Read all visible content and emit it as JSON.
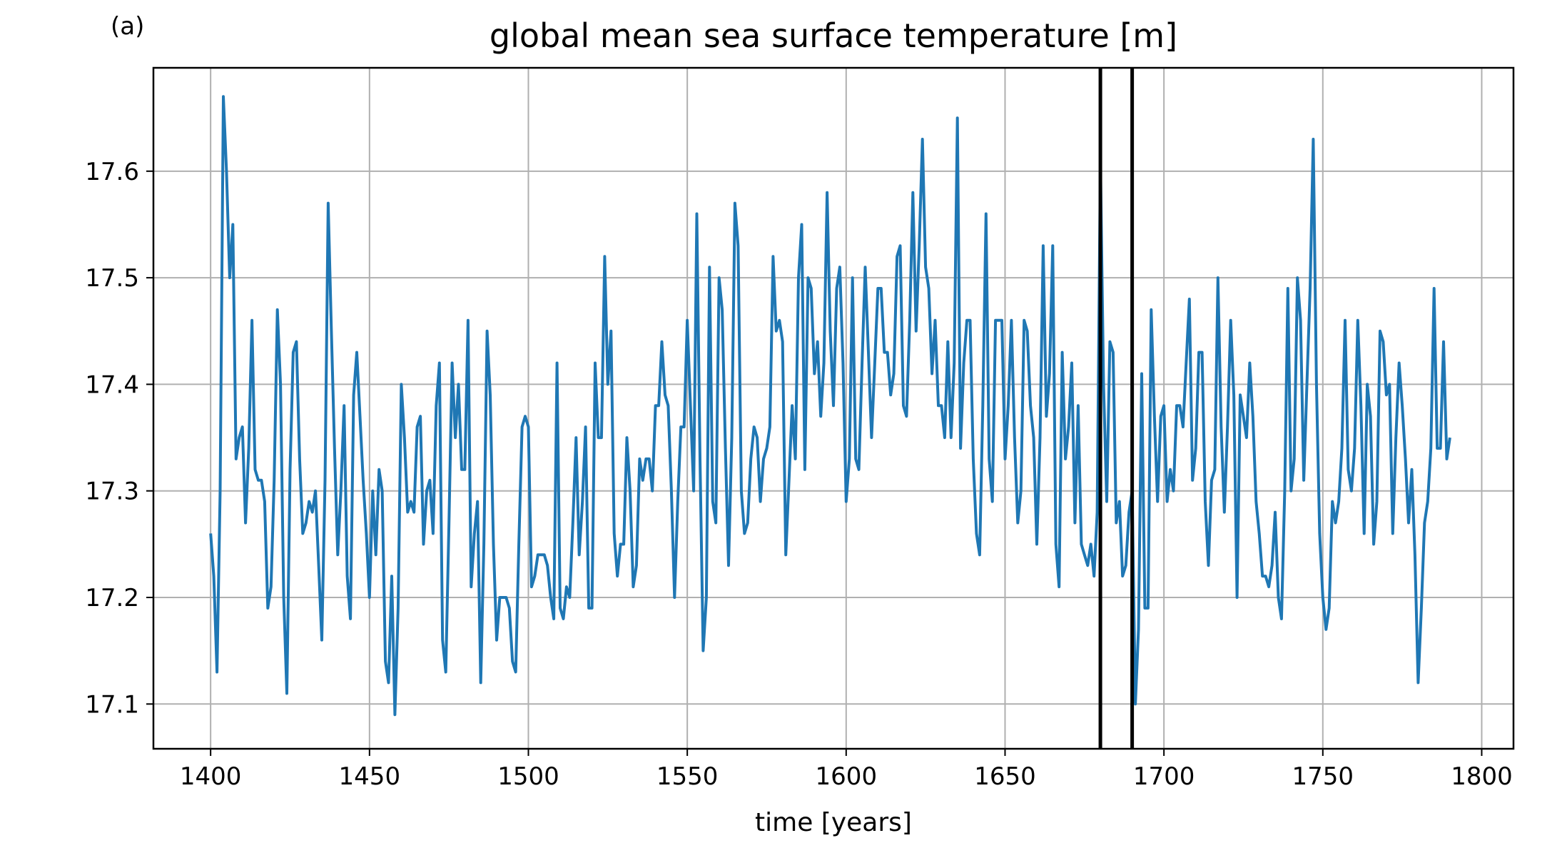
{
  "chart_data": {
    "type": "line",
    "panel_label": "(a)",
    "title": "global mean sea surface temperature [m]",
    "xlabel": "time [years]",
    "ylabel": "",
    "xlim": [
      1382,
      1810
    ],
    "ylim": [
      17.058,
      17.697
    ],
    "xticks": [
      1400,
      1450,
      1500,
      1550,
      1600,
      1650,
      1700,
      1750,
      1800
    ],
    "yticks": [
      17.1,
      17.2,
      17.3,
      17.4,
      17.5,
      17.6
    ],
    "ytick_labels": [
      "17.1",
      "17.2",
      "17.3",
      "17.4",
      "17.5",
      "17.6"
    ],
    "grid": true,
    "vertical_lines": [
      1680,
      1690
    ],
    "series": [
      {
        "color": "#1f77b4",
        "x": [
          1400,
          1401,
          1402,
          1403,
          1404,
          1405,
          1406,
          1407,
          1408,
          1409,
          1410,
          1411,
          1412,
          1413,
          1414,
          1415,
          1416,
          1417,
          1418,
          1419,
          1420,
          1421,
          1422,
          1423,
          1424,
          1425,
          1426,
          1427,
          1428,
          1429,
          1430,
          1431,
          1432,
          1433,
          1434,
          1435,
          1436,
          1437,
          1438,
          1439,
          1440,
          1441,
          1442,
          1443,
          1444,
          1445,
          1446,
          1447,
          1448,
          1449,
          1450,
          1451,
          1452,
          1453,
          1454,
          1455,
          1456,
          1457,
          1458,
          1459,
          1460,
          1461,
          1462,
          1463,
          1464,
          1465,
          1466,
          1467,
          1468,
          1469,
          1470,
          1471,
          1472,
          1473,
          1474,
          1475,
          1476,
          1477,
          1478,
          1479,
          1480,
          1481,
          1482,
          1483,
          1484,
          1485,
          1486,
          1487,
          1488,
          1489,
          1490,
          1491,
          1492,
          1493,
          1494,
          1495,
          1496,
          1497,
          1498,
          1499,
          1500,
          1501,
          1502,
          1503,
          1504,
          1505,
          1506,
          1507,
          1508,
          1509,
          1510,
          1511,
          1512,
          1513,
          1514,
          1515,
          1516,
          1517,
          1518,
          1519,
          1520,
          1521,
          1522,
          1523,
          1524,
          1525,
          1526,
          1527,
          1528,
          1529,
          1530,
          1531,
          1532,
          1533,
          1534,
          1535,
          1536,
          1537,
          1538,
          1539,
          1540,
          1541,
          1542,
          1543,
          1544,
          1545,
          1546,
          1547,
          1548,
          1549,
          1550,
          1551,
          1552,
          1553,
          1554,
          1555,
          1556,
          1557,
          1558,
          1559,
          1560,
          1561,
          1562,
          1563,
          1564,
          1565,
          1566,
          1567,
          1568,
          1569,
          1570,
          1571,
          1572,
          1573,
          1574,
          1575,
          1576,
          1577,
          1578,
          1579,
          1580,
          1581,
          1582,
          1583,
          1584,
          1585,
          1586,
          1587,
          1588,
          1589,
          1590,
          1591,
          1592,
          1593,
          1594,
          1595,
          1596,
          1597,
          1598,
          1599,
          1600,
          1601,
          1602,
          1603,
          1604,
          1605,
          1606,
          1607,
          1608,
          1609,
          1610,
          1611,
          1612,
          1613,
          1614,
          1615,
          1616,
          1617,
          1618,
          1619,
          1620,
          1621,
          1622,
          1623,
          1624,
          1625,
          1626,
          1627,
          1628,
          1629,
          1630,
          1631,
          1632,
          1633,
          1634,
          1635,
          1636,
          1637,
          1638,
          1639,
          1640,
          1641,
          1642,
          1643,
          1644,
          1645,
          1646,
          1647,
          1648,
          1649,
          1650,
          1651,
          1652,
          1653,
          1654,
          1655,
          1656,
          1657,
          1658,
          1659,
          1660,
          1661,
          1662,
          1663,
          1664,
          1665,
          1666,
          1667,
          1668,
          1669,
          1670,
          1671,
          1672,
          1673,
          1674,
          1675,
          1676,
          1677,
          1678,
          1679,
          1680,
          1681,
          1682,
          1683,
          1684,
          1685,
          1686,
          1687,
          1688,
          1689,
          1690,
          1691,
          1692,
          1693,
          1694,
          1695,
          1696,
          1697,
          1698,
          1699,
          1700,
          1701,
          1702,
          1703,
          1704,
          1705,
          1706,
          1707,
          1708,
          1709,
          1710,
          1711,
          1712,
          1713,
          1714,
          1715,
          1716,
          1717,
          1718,
          1719,
          1720,
          1721,
          1722,
          1723,
          1724,
          1725,
          1726,
          1727,
          1728,
          1729,
          1730,
          1731,
          1732,
          1733,
          1734,
          1735,
          1736,
          1737,
          1738,
          1739,
          1740,
          1741,
          1742,
          1743,
          1744,
          1745,
          1746,
          1747,
          1748,
          1749,
          1750,
          1751,
          1752,
          1753,
          1754,
          1755,
          1756,
          1757,
          1758,
          1759,
          1760,
          1761,
          1762,
          1763,
          1764,
          1765,
          1766,
          1767,
          1768,
          1769,
          1770,
          1771,
          1772,
          1773,
          1774,
          1775,
          1776,
          1777,
          1778,
          1779,
          1780,
          1781,
          1782,
          1783,
          1784,
          1785,
          1786,
          1787,
          1788,
          1789,
          1790
        ],
        "y": [
          17.26,
          17.22,
          17.13,
          17.3,
          17.67,
          17.6,
          17.5,
          17.55,
          17.33,
          17.35,
          17.36,
          17.27,
          17.34,
          17.46,
          17.32,
          17.31,
          17.31,
          17.29,
          17.19,
          17.21,
          17.31,
          17.47,
          17.4,
          17.2,
          17.11,
          17.32,
          17.43,
          17.44,
          17.33,
          17.26,
          17.27,
          17.29,
          17.28,
          17.3,
          17.23,
          17.16,
          17.31,
          17.57,
          17.45,
          17.34,
          17.24,
          17.3,
          17.38,
          17.22,
          17.18,
          17.39,
          17.43,
          17.37,
          17.31,
          17.26,
          17.2,
          17.3,
          17.24,
          17.32,
          17.3,
          17.14,
          17.12,
          17.22,
          17.09,
          17.19,
          17.4,
          17.35,
          17.28,
          17.29,
          17.28,
          17.36,
          17.37,
          17.25,
          17.3,
          17.31,
          17.26,
          17.38,
          17.42,
          17.16,
          17.13,
          17.27,
          17.42,
          17.35,
          17.4,
          17.32,
          17.32,
          17.46,
          17.21,
          17.26,
          17.29,
          17.12,
          17.25,
          17.45,
          17.39,
          17.25,
          17.16,
          17.2,
          17.2,
          17.2,
          17.19,
          17.14,
          17.13,
          17.25,
          17.36,
          17.37,
          17.36,
          17.21,
          17.22,
          17.24,
          17.24,
          17.24,
          17.23,
          17.2,
          17.18,
          17.42,
          17.19,
          17.18,
          17.21,
          17.2,
          17.27,
          17.35,
          17.24,
          17.29,
          17.36,
          17.19,
          17.19,
          17.42,
          17.35,
          17.35,
          17.52,
          17.4,
          17.45,
          17.26,
          17.22,
          17.25,
          17.25,
          17.35,
          17.3,
          17.21,
          17.23,
          17.33,
          17.31,
          17.33,
          17.33,
          17.3,
          17.38,
          17.38,
          17.44,
          17.39,
          17.38,
          17.3,
          17.2,
          17.29,
          17.36,
          17.36,
          17.46,
          17.38,
          17.3,
          17.56,
          17.33,
          17.15,
          17.2,
          17.51,
          17.29,
          17.27,
          17.5,
          17.47,
          17.34,
          17.23,
          17.35,
          17.57,
          17.53,
          17.3,
          17.26,
          17.27,
          17.33,
          17.36,
          17.35,
          17.29,
          17.33,
          17.34,
          17.36,
          17.52,
          17.45,
          17.46,
          17.44,
          17.24,
          17.31,
          17.38,
          17.33,
          17.5,
          17.55,
          17.32,
          17.5,
          17.49,
          17.41,
          17.44,
          17.37,
          17.42,
          17.58,
          17.45,
          17.38,
          17.49,
          17.51,
          17.42,
          17.29,
          17.33,
          17.5,
          17.33,
          17.32,
          17.42,
          17.51,
          17.43,
          17.35,
          17.42,
          17.49,
          17.49,
          17.43,
          17.43,
          17.39,
          17.41,
          17.52,
          17.53,
          17.38,
          17.37,
          17.46,
          17.58,
          17.45,
          17.53,
          17.63,
          17.51,
          17.49,
          17.41,
          17.46,
          17.38,
          17.38,
          17.35,
          17.44,
          17.35,
          17.42,
          17.65,
          17.34,
          17.42,
          17.46,
          17.46,
          17.33,
          17.26,
          17.24,
          17.38,
          17.56,
          17.33,
          17.29,
          17.46,
          17.46,
          17.46,
          17.33,
          17.38,
          17.46,
          17.35,
          17.27,
          17.3,
          17.46,
          17.45,
          17.38,
          17.35,
          17.25,
          17.35,
          17.53,
          17.37,
          17.41,
          17.53,
          17.25,
          17.21,
          17.43,
          17.33,
          17.36,
          17.42,
          17.27,
          17.38,
          17.25,
          17.24,
          17.23,
          17.25,
          17.22,
          17.28,
          17.61,
          17.4,
          17.29,
          17.44,
          17.43,
          17.27,
          17.29,
          17.22,
          17.23,
          17.28,
          17.3,
          17.1,
          17.17,
          17.41,
          17.19,
          17.19,
          17.47,
          17.37,
          17.29,
          17.37,
          17.38,
          17.29,
          17.32,
          17.3,
          17.38,
          17.38,
          17.36,
          17.42,
          17.48,
          17.31,
          17.34,
          17.43,
          17.43,
          17.29,
          17.23,
          17.31,
          17.32,
          17.5,
          17.36,
          17.28,
          17.36,
          17.46,
          17.39,
          17.2,
          17.39,
          17.37,
          17.35,
          17.42,
          17.37,
          17.29,
          17.26,
          17.22,
          17.22,
          17.21,
          17.23,
          17.28,
          17.2,
          17.18,
          17.3,
          17.49,
          17.3,
          17.33,
          17.5,
          17.46,
          17.31,
          17.4,
          17.49,
          17.63,
          17.4,
          17.26,
          17.2,
          17.17,
          17.19,
          17.29,
          17.27,
          17.29,
          17.34,
          17.46,
          17.32,
          17.3,
          17.34,
          17.46,
          17.38,
          17.26,
          17.4,
          17.37,
          17.25,
          17.29,
          17.45,
          17.44,
          17.39,
          17.4,
          17.26,
          17.35,
          17.42,
          17.38,
          17.33,
          17.27,
          17.32,
          17.24,
          17.12,
          17.19,
          17.27,
          17.29,
          17.34,
          17.49,
          17.34,
          17.34,
          17.44,
          17.33,
          17.35
        ]
      }
    ]
  }
}
